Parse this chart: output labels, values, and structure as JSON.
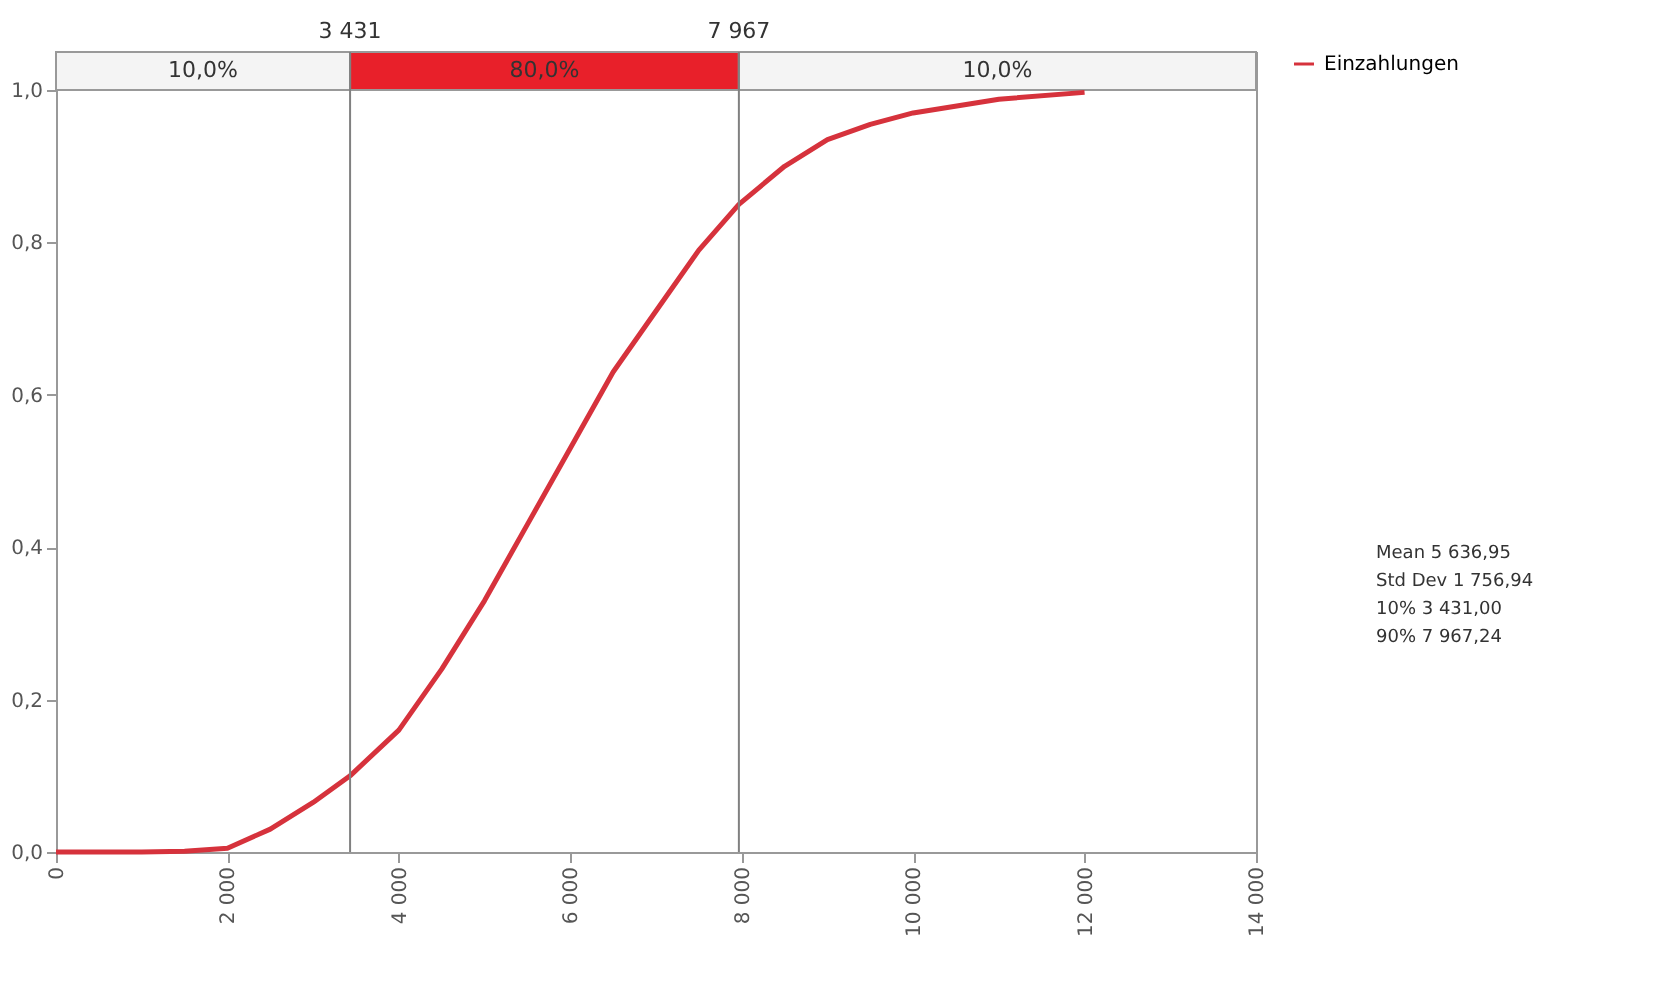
{
  "chart_data": {
    "type": "line",
    "x": [
      0,
      1000,
      1500,
      2000,
      2500,
      3000,
      3431,
      4000,
      4500,
      5000,
      5500,
      6000,
      6500,
      7000,
      7500,
      7967,
      8500,
      9000,
      9500,
      10000,
      11000,
      12000
    ],
    "series": [
      {
        "name": "Einzahlungen",
        "color": "#d6323c",
        "values": [
          0,
          0,
          0.001,
          0.005,
          0.03,
          0.065,
          0.1,
          0.16,
          0.24,
          0.33,
          0.43,
          0.53,
          0.63,
          0.71,
          0.79,
          0.85,
          0.9,
          0.935,
          0.955,
          0.97,
          0.988,
          0.997
        ]
      }
    ],
    "xlim": [
      0,
      14000
    ],
    "xticks": [
      0,
      {
        "value": 2000,
        "label": "2 000"
      },
      {
        "value": 4000,
        "label": "4 000"
      },
      {
        "value": 6000,
        "label": "6 000"
      },
      {
        "value": 8000,
        "label": "8 000"
      },
      {
        "value": 10000,
        "label": "10 000"
      },
      {
        "value": 12000,
        "label": "12 000"
      },
      {
        "value": 14000,
        "label": "14 000"
      }
    ],
    "ylim": [
      0,
      1.05
    ],
    "yticks": [
      {
        "value": 0,
        "label": "0,0"
      },
      {
        "value": 0.2,
        "label": "0,2"
      },
      {
        "value": 0.4,
        "label": "0,4"
      },
      {
        "value": 0.6,
        "label": "0,6"
      },
      {
        "value": 0.8,
        "label": "0,8"
      },
      {
        "value": 1.0,
        "label": "1,0"
      }
    ],
    "ref_lines": [
      {
        "axis": "x",
        "value": 3431,
        "label": "3 431",
        "color": "#808080"
      },
      {
        "axis": "x",
        "value": 7967,
        "label": "7 967",
        "color": "#808080"
      }
    ],
    "bands": [
      {
        "axis": "x",
        "from": 0,
        "to": 3431,
        "label": "10,0%",
        "color": "#f4f4f4"
      },
      {
        "axis": "x",
        "from": 3431,
        "to": 7967,
        "label": "80,0%",
        "color": "#e8202a"
      },
      {
        "axis": "x",
        "from": 7967,
        "to": 14000,
        "label": "10,0%",
        "color": "#f4f4f4"
      }
    ],
    "annotations": [
      "Mean 5 636,95",
      "Std Dev 1 756,94",
      "10% 3 431,00",
      "90% 7 967,24"
    ],
    "legend": "right",
    "grid": false,
    "marker": "none",
    "line_style": "solid"
  }
}
